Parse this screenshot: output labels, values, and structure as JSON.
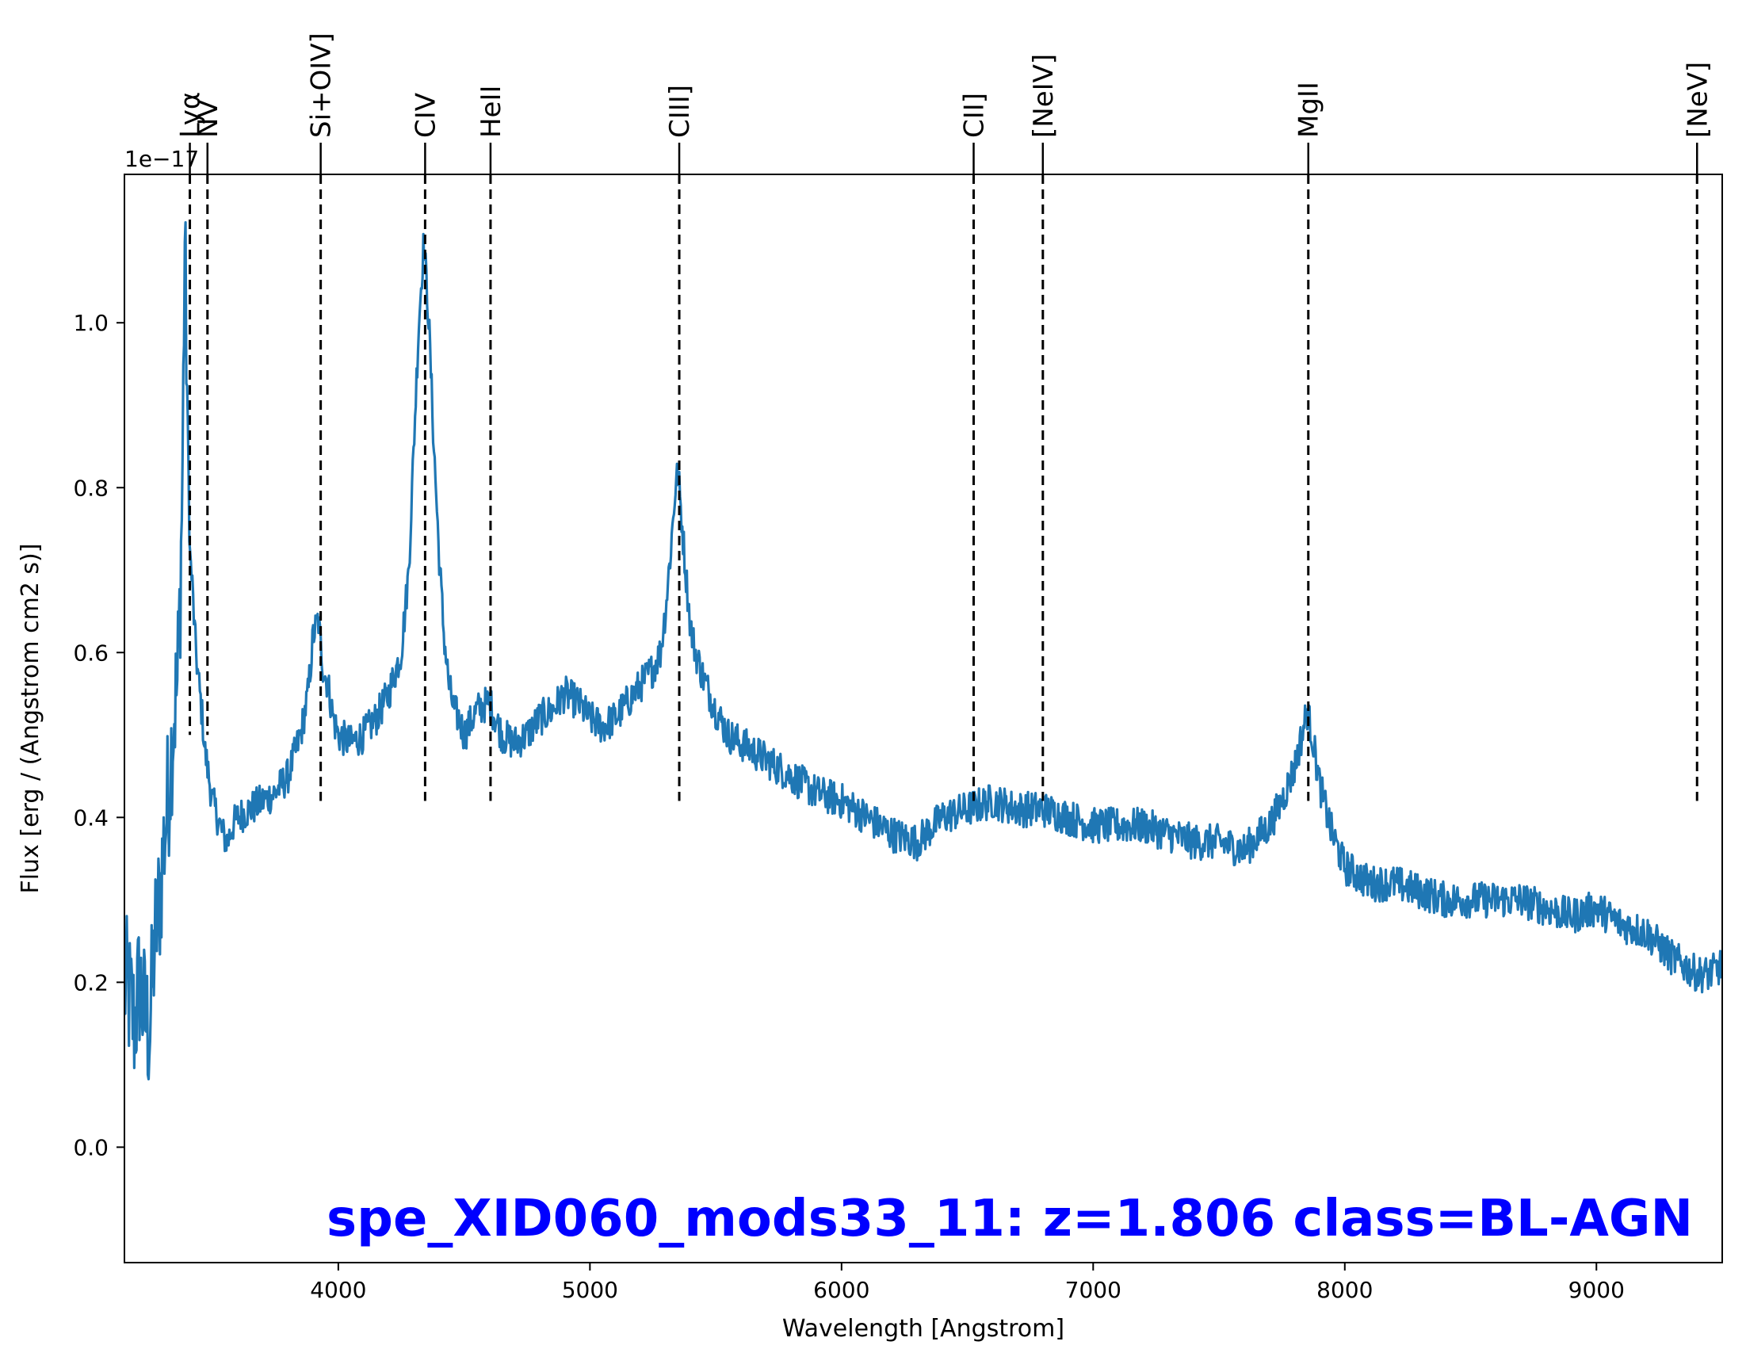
{
  "chart_data": {
    "type": "line",
    "title": "",
    "xlabel": "Wavelength [Angstrom]",
    "ylabel": "Flux [erg / (Angstrom cm2 s)]",
    "y_offset_label": "1e−17",
    "xlim": [
      3150,
      9500
    ],
    "ylim": [
      -0.14,
      1.18
    ],
    "x_ticks": [
      4000,
      5000,
      6000,
      7000,
      8000,
      9000
    ],
    "y_ticks": [
      0.0,
      0.2,
      0.4,
      0.6,
      0.8,
      1.0
    ],
    "x_tick_labels": [
      "4000",
      "5000",
      "6000",
      "7000",
      "8000",
      "9000"
    ],
    "y_tick_labels": [
      "0.0",
      "0.2",
      "0.4",
      "0.6",
      "0.8",
      "1.0"
    ],
    "grid": false,
    "series": [
      {
        "color": "#1f77b4",
        "x": [
          3150,
          3170,
          3190,
          3210,
          3230,
          3250,
          3270,
          3290,
          3310,
          3330,
          3345,
          3360,
          3370,
          3380,
          3390,
          3400,
          3410,
          3420,
          3430,
          3440,
          3450,
          3460,
          3470,
          3480,
          3500,
          3520,
          3540,
          3560,
          3580,
          3600,
          3650,
          3700,
          3750,
          3800,
          3850,
          3880,
          3900,
          3920,
          3940,
          3960,
          3980,
          4000,
          4050,
          4100,
          4150,
          4200,
          4250,
          4280,
          4300,
          4320,
          4340,
          4360,
          4380,
          4400,
          4420,
          4440,
          4460,
          4480,
          4500,
          4550,
          4600,
          4650,
          4700,
          4750,
          4800,
          4850,
          4900,
          4950,
          5000,
          5050,
          5100,
          5150,
          5200,
          5250,
          5280,
          5300,
          5320,
          5340,
          5350,
          5360,
          5380,
          5400,
          5420,
          5450,
          5500,
          5550,
          5600,
          5650,
          5700,
          5800,
          5900,
          6000,
          6100,
          6200,
          6300,
          6400,
          6500,
          6600,
          6700,
          6800,
          6900,
          7000,
          7100,
          7200,
          7300,
          7400,
          7500,
          7600,
          7700,
          7750,
          7800,
          7830,
          7850,
          7870,
          7900,
          7950,
          8000,
          8100,
          8200,
          8300,
          8400,
          8500,
          8600,
          8700,
          8800,
          8900,
          9000,
          9100,
          9200,
          9300,
          9400,
          9450,
          9500
        ],
        "y": [
          0.2,
          0.18,
          0.15,
          0.2,
          0.16,
          0.14,
          0.25,
          0.3,
          0.38,
          0.45,
          0.52,
          0.56,
          0.65,
          0.8,
          1.1,
          0.9,
          0.72,
          0.68,
          0.62,
          0.58,
          0.55,
          0.52,
          0.48,
          0.46,
          0.42,
          0.4,
          0.38,
          0.37,
          0.39,
          0.4,
          0.41,
          0.42,
          0.43,
          0.45,
          0.5,
          0.55,
          0.62,
          0.64,
          0.58,
          0.56,
          0.52,
          0.5,
          0.49,
          0.5,
          0.52,
          0.55,
          0.6,
          0.7,
          0.85,
          1.0,
          1.1,
          1.0,
          0.85,
          0.72,
          0.62,
          0.56,
          0.53,
          0.52,
          0.5,
          0.53,
          0.54,
          0.5,
          0.49,
          0.5,
          0.52,
          0.53,
          0.55,
          0.54,
          0.52,
          0.51,
          0.52,
          0.54,
          0.56,
          0.58,
          0.6,
          0.65,
          0.72,
          0.8,
          0.82,
          0.78,
          0.7,
          0.63,
          0.6,
          0.57,
          0.53,
          0.5,
          0.49,
          0.48,
          0.47,
          0.45,
          0.43,
          0.42,
          0.4,
          0.38,
          0.37,
          0.4,
          0.41,
          0.42,
          0.41,
          0.41,
          0.4,
          0.39,
          0.39,
          0.39,
          0.38,
          0.37,
          0.37,
          0.36,
          0.39,
          0.42,
          0.46,
          0.5,
          0.53,
          0.5,
          0.44,
          0.38,
          0.34,
          0.32,
          0.32,
          0.31,
          0.3,
          0.3,
          0.3,
          0.3,
          0.29,
          0.28,
          0.29,
          0.27,
          0.26,
          0.23,
          0.21,
          0.21,
          0.22
        ]
      }
    ],
    "emission_lines": [
      {
        "name": "Lyα",
        "x": 3410
      },
      {
        "name": "NV",
        "x": 3480
      },
      {
        "name": "Si+OIV]",
        "x": 3930
      },
      {
        "name": "CIV",
        "x": 4345
      },
      {
        "name": "HeII",
        "x": 4605
      },
      {
        "name": "CIII]",
        "x": 5355
      },
      {
        "name": "CII]",
        "x": 6525
      },
      {
        "name": "[NeIV]",
        "x": 6800
      },
      {
        "name": "MgII",
        "x": 7855
      },
      {
        "name": "[NeV]",
        "x": 9400
      }
    ],
    "annotation": "spe_XID060_mods33_11: z=1.806 class=BL-AGN"
  }
}
